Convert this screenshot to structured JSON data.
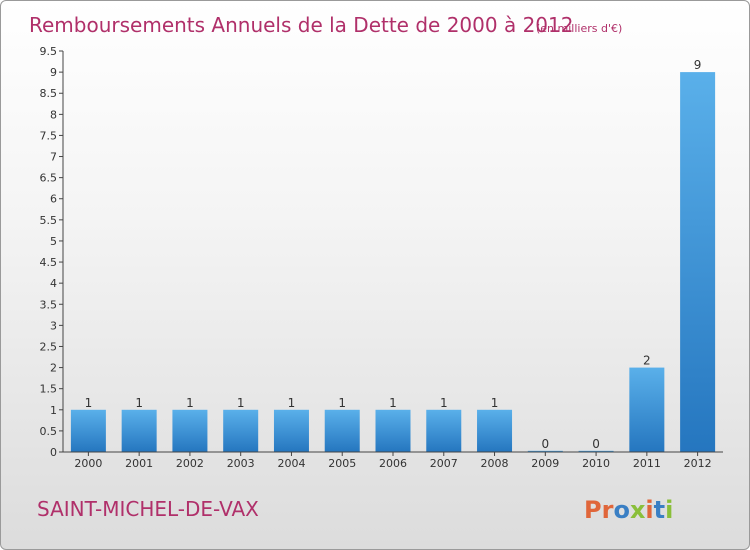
{
  "chart_data": {
    "type": "bar",
    "title": "Remboursements Annuels de la Dette de 2000 à 2012",
    "subtitle": "(en milliers d'€)",
    "categories": [
      "2000",
      "2001",
      "2002",
      "2003",
      "2004",
      "2005",
      "2006",
      "2007",
      "2008",
      "2009",
      "2010",
      "2011",
      "2012"
    ],
    "values": [
      1,
      1,
      1,
      1,
      1,
      1,
      1,
      1,
      1,
      0,
      0,
      2,
      9
    ],
    "data_labels": [
      "1",
      "1",
      "1",
      "1",
      "1",
      "1",
      "1",
      "1",
      "1",
      "0",
      "0",
      "2",
      "9"
    ],
    "ylim": [
      0,
      9.5
    ],
    "yticks": [
      0,
      0.5,
      1,
      1.5,
      2,
      2.5,
      3,
      3.5,
      4,
      4.5,
      5,
      5.5,
      6,
      6.5,
      7,
      7.5,
      8,
      8.5,
      9,
      9.5
    ],
    "ytick_labels": [
      "0",
      "0.5",
      "1",
      "1.5",
      "2",
      "2.5",
      "3",
      "3.5",
      "4",
      "4.5",
      "5",
      "5.5",
      "6",
      "6.5",
      "7",
      "7.5",
      "8",
      "8.5",
      "9",
      "9.5"
    ],
    "grid": false,
    "legend": "none",
    "bar_color": "#3a8fd6"
  },
  "commune": "SAINT-MICHEL-DE-VAX",
  "logo": {
    "text": "Proxiti",
    "colors": [
      "#e0663a",
      "#e0663a",
      "#3a7fc4",
      "#8abf3a",
      "#e0663a",
      "#3a7fc4",
      "#8abf3a"
    ]
  },
  "colors": {
    "title": "#b0306a",
    "bar_top": "#5ab0ea",
    "bar_bottom": "#2576bf"
  }
}
